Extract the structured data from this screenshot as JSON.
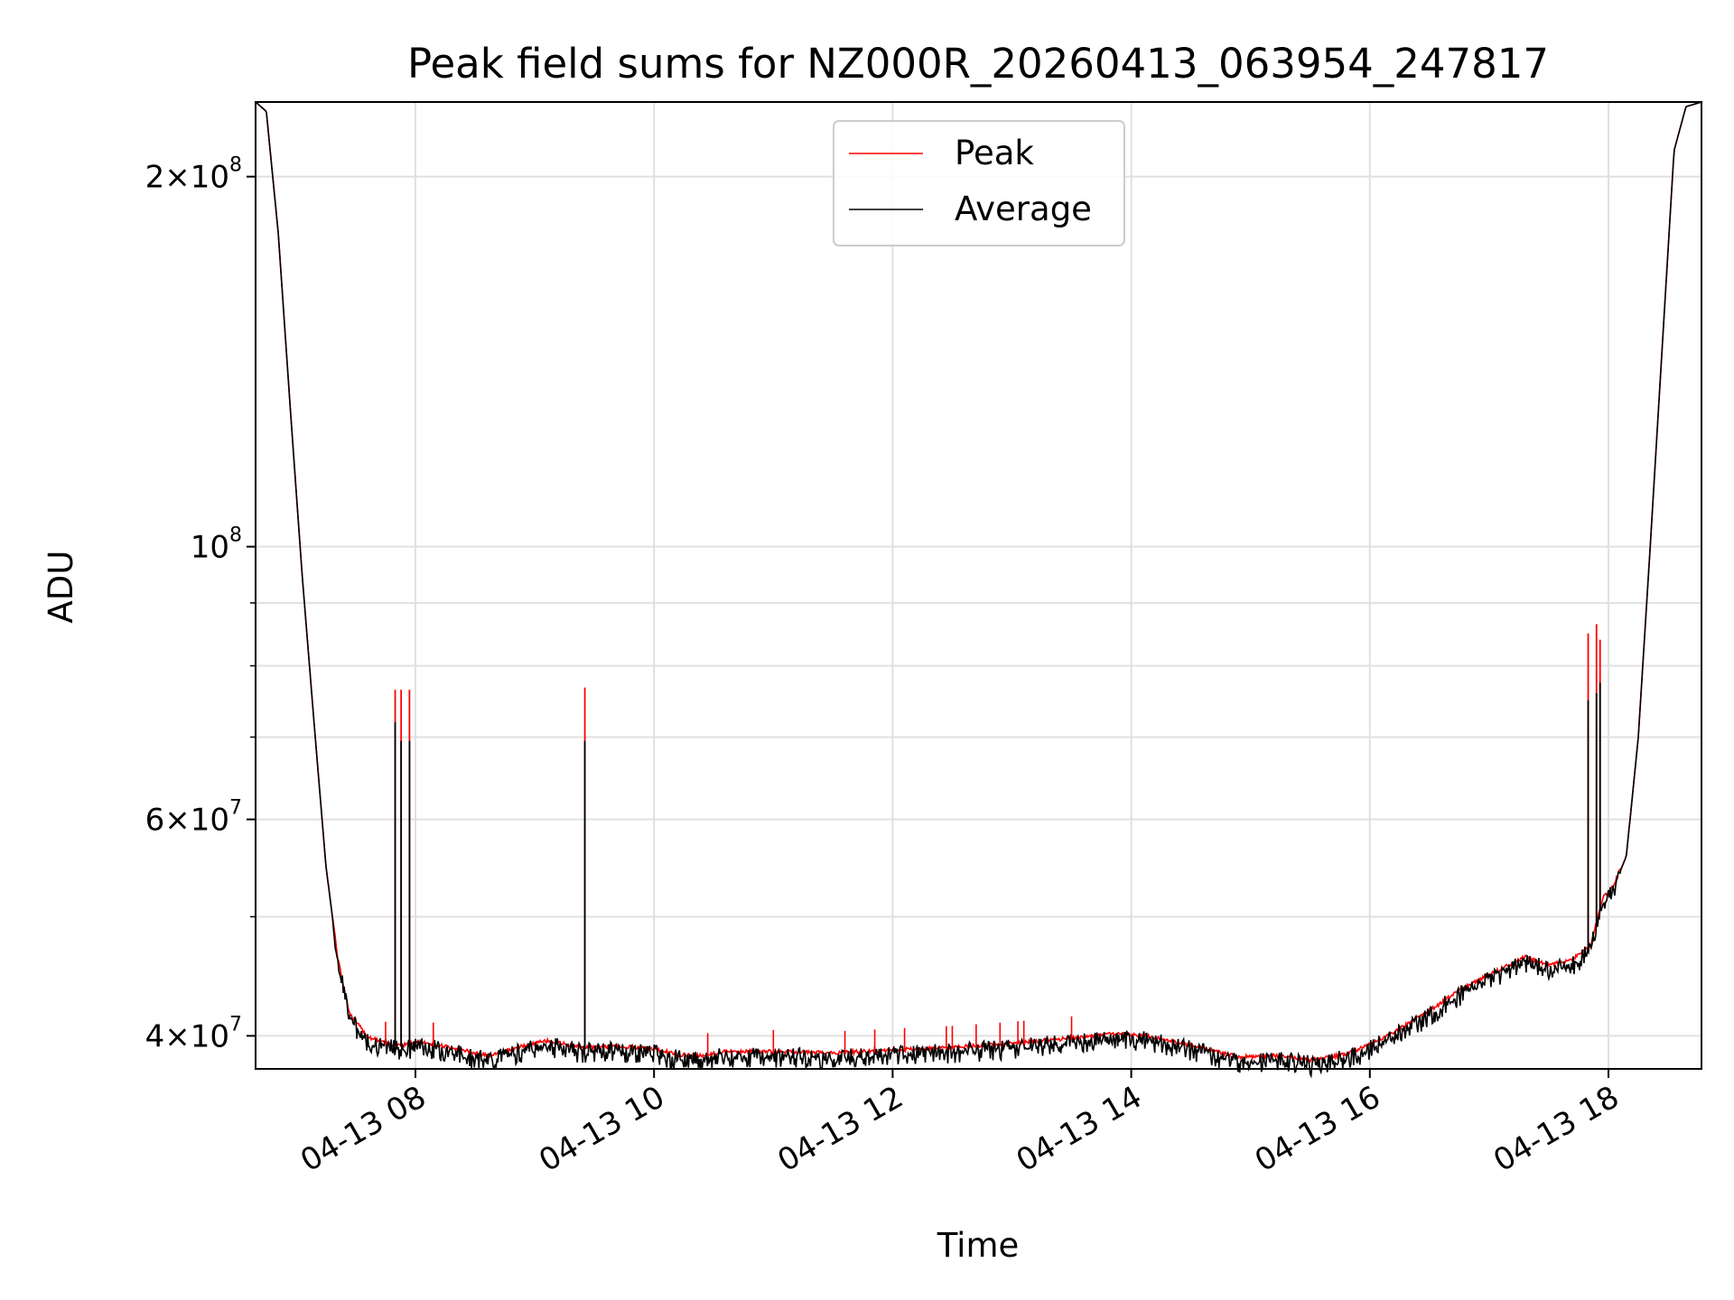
{
  "chart_data": {
    "type": "line",
    "title": "Peak field sums for NZ000R_20260413_063954_247817",
    "xlabel": "Time",
    "ylabel": "ADU",
    "yscale": "log",
    "grid": true,
    "x_range_hours": [
      6.66,
      18.78
    ],
    "ylim": [
      37600000,
      230000000
    ],
    "x_ticks": [
      {
        "hour": 8,
        "label": "04-13 08"
      },
      {
        "hour": 10,
        "label": "04-13 10"
      },
      {
        "hour": 12,
        "label": "04-13 12"
      },
      {
        "hour": 14,
        "label": "04-13 14"
      },
      {
        "hour": 16,
        "label": "04-13 16"
      },
      {
        "hour": 18,
        "label": "04-13 18"
      }
    ],
    "y_major_ticks": [
      {
        "value": 40000000,
        "mant": "4",
        "exp": "7"
      },
      {
        "value": 60000000,
        "mant": "6",
        "exp": "7"
      },
      {
        "value": 100000000,
        "mant": "",
        "exp": "8"
      },
      {
        "value": 200000000,
        "mant": "2",
        "exp": "8"
      }
    ],
    "y_minor_ticks": [
      50000000,
      70000000,
      80000000,
      90000000
    ],
    "legend": {
      "position": "upper center",
      "entries": [
        {
          "name": "Peak",
          "color": "#ff0000"
        },
        {
          "name": "Average",
          "color": "#000000"
        }
      ]
    },
    "series": [
      {
        "name": "Average",
        "color": "#000000",
        "x": [
          6.66,
          6.75,
          6.85,
          6.95,
          7.05,
          7.15,
          7.25,
          7.35,
          7.45,
          7.6,
          7.75,
          7.9,
          8.05,
          8.3,
          8.6,
          8.9,
          9.1,
          9.4,
          9.7,
          10.0,
          10.2,
          10.4,
          10.6,
          11.0,
          11.5,
          12.0,
          12.5,
          13.0,
          13.5,
          13.8,
          14.1,
          14.5,
          14.9,
          15.2,
          15.5,
          15.8,
          16.0,
          16.2,
          16.5,
          16.8,
          17.1,
          17.3,
          17.5,
          17.7,
          17.85,
          17.95,
          18.05,
          18.15,
          18.25,
          18.35,
          18.45,
          18.55,
          18.65,
          18.78
        ],
        "y": [
          230000000,
          226000000,
          180000000,
          130000000,
          95000000,
          72000000,
          55000000,
          46000000,
          41500000,
          39800000,
          39300000,
          39200000,
          39400000,
          39000000,
          38400000,
          39100000,
          39500000,
          39000000,
          39100000,
          38900000,
          38500000,
          38400000,
          38700000,
          38700000,
          38600000,
          38800000,
          39000000,
          39300000,
          39700000,
          40000000,
          39900000,
          39200000,
          38300000,
          38400000,
          38100000,
          38500000,
          39200000,
          40100000,
          41800000,
          43700000,
          45200000,
          46200000,
          45500000,
          46000000,
          47200000,
          51500000,
          53000000,
          56000000,
          70000000,
          100000000,
          145000000,
          210000000,
          228000000,
          230000000
        ]
      },
      {
        "name": "Peak",
        "color": "#ff0000",
        "spikes": [
          {
            "hour": 7.83,
            "peak": 76500000,
            "avg": 72000000
          },
          {
            "hour": 7.88,
            "peak": 76500000,
            "avg": 69500000
          },
          {
            "hour": 7.95,
            "peak": 76500000,
            "avg": 69500000
          },
          {
            "hour": 9.42,
            "peak": 76800000,
            "avg": 69500000
          },
          {
            "hour": 17.83,
            "peak": 85000000,
            "avg": 75000000
          },
          {
            "hour": 17.9,
            "peak": 86500000,
            "avg": 76000000
          },
          {
            "hour": 17.93,
            "peak": 84000000,
            "avg": 77500000
          }
        ]
      }
    ]
  }
}
